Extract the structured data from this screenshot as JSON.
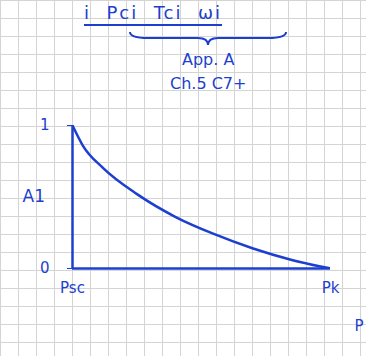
{
  "chart_data": {
    "type": "line",
    "title": "i  Pci  Tci  ωi",
    "annotations": [
      "App. A",
      "Ch.5 C7+"
    ],
    "x_label": "P",
    "y_label": "A1",
    "x": [
      0,
      0.04,
      0.12,
      0.25,
      0.4,
      0.55,
      0.7,
      0.85,
      1
    ],
    "series": [
      {
        "name": "A1",
        "color": "#1d3fcf",
        "values": [
          1,
          0.86,
          0.7,
          0.52,
          0.36,
          0.24,
          0.14,
          0.06,
          0
        ]
      }
    ],
    "xlim": [
      0,
      1
    ],
    "xticks": [
      {
        "value": 0,
        "label": "Psc"
      },
      {
        "value": 1,
        "label": "Pk"
      }
    ],
    "ylim": [
      0,
      1
    ],
    "yticks": [
      0,
      1
    ],
    "grid": false
  }
}
